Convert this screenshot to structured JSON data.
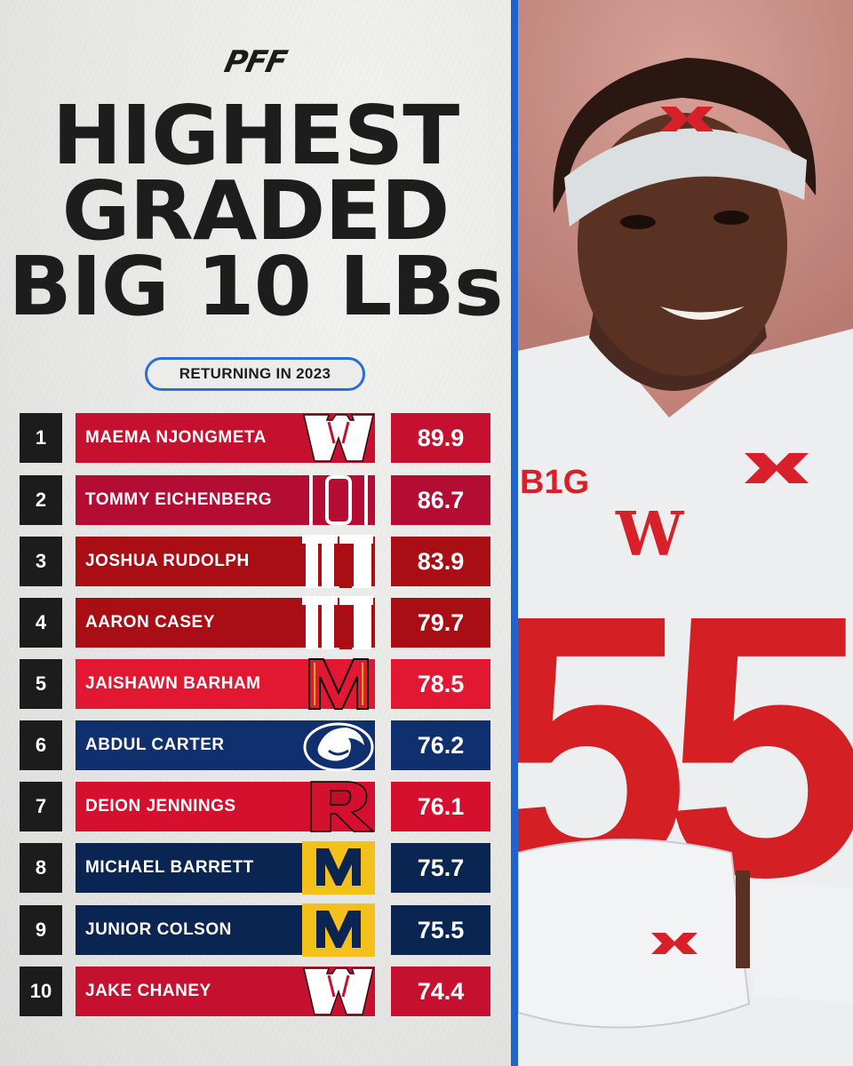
{
  "brand": {
    "logo_text": "PFF"
  },
  "header": {
    "title_lines": [
      "HIGHEST",
      "GRADED",
      "BIG 10 LBs"
    ],
    "subtitle_pill": "RETURNING IN 2023"
  },
  "colors": {
    "divider_blue": "#1f63d0",
    "wisconsin_red": "#c5102f",
    "ohio_state_red": "#b0101e",
    "maryland_red": "#e21833",
    "penn_state_navy": "#0f2f6e",
    "rutgers_red": "#d5102f",
    "michigan_navy": "#0b2552",
    "michigan_maize": "#f4c11a",
    "rank_box": "#1c1c1c"
  },
  "rankings": [
    {
      "rank": "1",
      "name": "MAEMA NJONGMETA",
      "grade": "89.9",
      "team_logo": "wisconsin-w-logo",
      "bar_color": "#c5102f",
      "grade_color": "#c5102f"
    },
    {
      "rank": "2",
      "name": "TOMMY EICHENBERG",
      "grade": "86.7",
      "team_logo": "ohio-state-o-logo",
      "bar_color": "#b30d34",
      "grade_color": "#b30d34"
    },
    {
      "rank": "3",
      "name": "JOSHUA RUDOLPH",
      "grade": "83.9",
      "team_logo": "indiana-iu-logo",
      "bar_color": "#a80e14",
      "grade_color": "#a80e14"
    },
    {
      "rank": "4",
      "name": "AARON CASEY",
      "grade": "79.7",
      "team_logo": "indiana-iu-logo",
      "bar_color": "#a80e14",
      "grade_color": "#a80e14"
    },
    {
      "rank": "5",
      "name": "JAISHAWN BARHAM",
      "grade": "78.5",
      "team_logo": "maryland-m-logo",
      "bar_color": "#e21833",
      "grade_color": "#e21833"
    },
    {
      "rank": "6",
      "name": "ABDUL CARTER",
      "grade": "76.2",
      "team_logo": "penn-state-lion-logo",
      "bar_color": "#0f2f6e",
      "grade_color": "#0f2f6e"
    },
    {
      "rank": "7",
      "name": "DEION JENNINGS",
      "grade": "76.1",
      "team_logo": "rutgers-r-logo",
      "bar_color": "#d5102f",
      "grade_color": "#d5102f"
    },
    {
      "rank": "8",
      "name": "MICHAEL BARRETT",
      "grade": "75.7",
      "team_logo": "michigan-m-logo",
      "bar_color": "#0b2552",
      "grade_color": "#0b2552"
    },
    {
      "rank": "9",
      "name": "JUNIOR COLSON",
      "grade": "75.5",
      "team_logo": "michigan-m-logo",
      "bar_color": "#0b2552",
      "grade_color": "#0b2552"
    },
    {
      "rank": "10",
      "name": "JAKE CHANEY",
      "grade": "74.4",
      "team_logo": "wisconsin-w-logo",
      "bar_color": "#c5102f",
      "grade_color": "#c5102f"
    }
  ],
  "photo": {
    "jersey_number": "55",
    "jersey_patch": "B1G",
    "chest_logo": "W"
  }
}
